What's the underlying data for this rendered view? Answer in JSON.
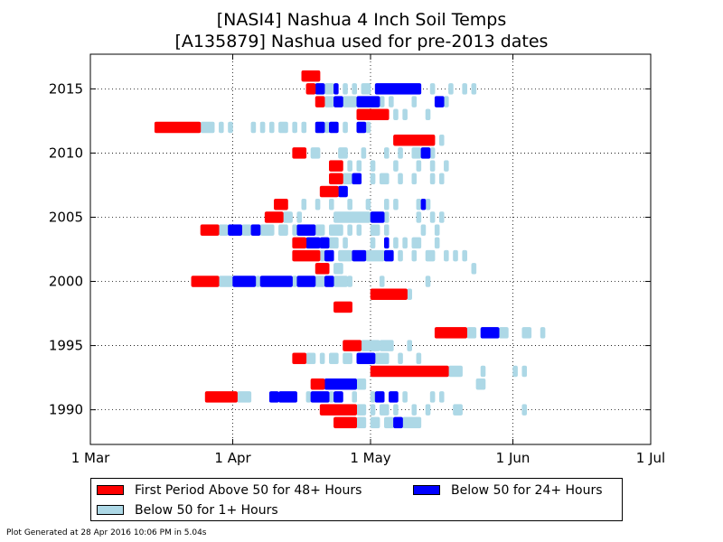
{
  "chart_data": {
    "type": "bar",
    "title_lines": [
      "[NASI4] Nashua 4 Inch Soil Temps",
      "[A135879] Nashua used for pre-2013 dates"
    ],
    "x_axis": {
      "kind": "date-of-year",
      "range": [
        "03-01",
        "07-01"
      ],
      "ticks": [
        {
          "date": "03-01",
          "label": "1 Mar"
        },
        {
          "date": "04-01",
          "label": "1 Apr"
        },
        {
          "date": "05-01",
          "label": "1 May"
        },
        {
          "date": "06-01",
          "label": "1 Jun"
        },
        {
          "date": "07-01",
          "label": "1 Jul"
        }
      ]
    },
    "y_axis": {
      "range": [
        1987.3,
        2017.7
      ],
      "ticks": [
        1990,
        1995,
        2000,
        2005,
        2010,
        2015
      ]
    },
    "grid": true,
    "legend_placement": "bottom",
    "colors": {
      "above50_48h": "#ff0000",
      "below50_24h": "#0000ff",
      "below50_1h": "#add8e6"
    },
    "series": [
      {
        "key": "below50_1h",
        "name": "Below 50 for 1+ Hours"
      },
      {
        "key": "below50_24h",
        "name": "Below 50 for 24+ Hours"
      },
      {
        "key": "above50_48h",
        "name": "First Period Above 50 for 48+ Hours"
      }
    ],
    "years": [
      {
        "year": 2016,
        "above50_48h": [
          [
            "04-16",
            "04-20"
          ]
        ],
        "below50_24h": [],
        "below50_1h": []
      },
      {
        "year": 2015,
        "above50_48h": [
          [
            "04-17",
            "04-19"
          ]
        ],
        "below50_24h": [
          [
            "04-19",
            "04-21"
          ],
          [
            "04-23",
            "04-24"
          ],
          [
            "05-02",
            "05-12"
          ]
        ],
        "below50_1h": [
          [
            "04-21",
            "04-23"
          ],
          [
            "04-25",
            "04-26"
          ],
          [
            "04-27",
            "04-28"
          ],
          [
            "04-29",
            "05-01"
          ],
          [
            "05-14",
            "05-15"
          ],
          [
            "05-18",
            "05-19"
          ],
          [
            "05-21",
            "05-22"
          ],
          [
            "05-23",
            "05-24"
          ]
        ]
      },
      {
        "year": 2014,
        "above50_48h": [
          [
            "04-19",
            "04-21"
          ]
        ],
        "below50_24h": [
          [
            "04-23",
            "04-25"
          ],
          [
            "04-28",
            "05-03"
          ],
          [
            "05-15",
            "05-17"
          ]
        ],
        "below50_1h": [
          [
            "04-21",
            "04-23"
          ],
          [
            "04-25",
            "04-28"
          ],
          [
            "05-03",
            "05-04"
          ],
          [
            "05-05",
            "05-06"
          ],
          [
            "05-10",
            "05-11"
          ],
          [
            "05-17",
            "05-18"
          ]
        ]
      },
      {
        "year": 2013,
        "above50_48h": [
          [
            "04-28",
            "05-05"
          ]
        ],
        "below50_24h": [],
        "below50_1h": [
          [
            "05-06",
            "05-07"
          ],
          [
            "05-08",
            "05-09"
          ],
          [
            "05-13",
            "05-14"
          ]
        ]
      },
      {
        "year": 2012,
        "above50_48h": [
          [
            "03-15",
            "03-25"
          ]
        ],
        "below50_24h": [
          [
            "04-19",
            "04-21"
          ],
          [
            "04-22",
            "04-24"
          ],
          [
            "04-28",
            "04-30"
          ]
        ],
        "below50_1h": [
          [
            "03-25",
            "03-28"
          ],
          [
            "03-29",
            "03-30"
          ],
          [
            "03-31",
            "04-01"
          ],
          [
            "04-05",
            "04-06"
          ],
          [
            "04-07",
            "04-08"
          ],
          [
            "04-09",
            "04-10"
          ],
          [
            "04-11",
            "04-13"
          ],
          [
            "04-14",
            "04-15"
          ],
          [
            "04-16",
            "04-17"
          ],
          [
            "04-21",
            "04-22"
          ],
          [
            "04-25",
            "04-26"
          ],
          [
            "04-30",
            "05-01"
          ]
        ]
      },
      {
        "year": 2011,
        "above50_48h": [
          [
            "05-06",
            "05-15"
          ]
        ],
        "below50_24h": [],
        "below50_1h": [
          [
            "05-16",
            "05-17"
          ]
        ]
      },
      {
        "year": 2010,
        "above50_48h": [
          [
            "04-14",
            "04-17"
          ]
        ],
        "below50_24h": [
          [
            "05-12",
            "05-14"
          ]
        ],
        "below50_1h": [
          [
            "04-18",
            "04-20"
          ],
          [
            "04-24",
            "04-26"
          ],
          [
            "04-29",
            "04-30"
          ],
          [
            "05-04",
            "05-05"
          ],
          [
            "05-07",
            "05-08"
          ],
          [
            "05-10",
            "05-12"
          ],
          [
            "05-14",
            "05-15"
          ]
        ]
      },
      {
        "year": 2009,
        "above50_48h": [
          [
            "04-22",
            "04-25"
          ]
        ],
        "below50_24h": [],
        "below50_1h": [
          [
            "04-26",
            "04-27"
          ],
          [
            "04-28",
            "04-29"
          ],
          [
            "05-01",
            "05-02"
          ],
          [
            "05-06",
            "05-07"
          ],
          [
            "05-11",
            "05-12"
          ],
          [
            "05-14",
            "05-15"
          ],
          [
            "05-17",
            "05-18"
          ]
        ]
      },
      {
        "year": 2008,
        "above50_48h": [
          [
            "04-22",
            "04-25"
          ]
        ],
        "below50_24h": [
          [
            "04-27",
            "04-29"
          ]
        ],
        "below50_1h": [
          [
            "04-25",
            "04-27"
          ],
          [
            "05-01",
            "05-02"
          ],
          [
            "05-03",
            "05-05"
          ],
          [
            "05-07",
            "05-08"
          ],
          [
            "05-10",
            "05-11"
          ],
          [
            "05-14",
            "05-15"
          ],
          [
            "05-16",
            "05-17"
          ]
        ]
      },
      {
        "year": 2007,
        "above50_48h": [
          [
            "04-20",
            "04-24"
          ]
        ],
        "below50_24h": [
          [
            "04-24",
            "04-26"
          ]
        ],
        "below50_1h": []
      },
      {
        "year": 2006,
        "above50_48h": [
          [
            "04-10",
            "04-13"
          ]
        ],
        "below50_24h": [
          [
            "05-12",
            "05-13"
          ]
        ],
        "below50_1h": [
          [
            "04-16",
            "04-17"
          ],
          [
            "04-19",
            "04-20"
          ],
          [
            "04-22",
            "04-23"
          ],
          [
            "04-26",
            "04-27"
          ],
          [
            "04-30",
            "05-01"
          ],
          [
            "05-04",
            "05-05"
          ],
          [
            "05-06",
            "05-07"
          ],
          [
            "05-11",
            "05-12"
          ],
          [
            "05-13",
            "05-14"
          ]
        ]
      },
      {
        "year": 2005,
        "above50_48h": [
          [
            "04-08",
            "04-12"
          ]
        ],
        "below50_24h": [
          [
            "05-01",
            "05-04"
          ]
        ],
        "below50_1h": [
          [
            "04-12",
            "04-14"
          ],
          [
            "04-15",
            "04-16"
          ],
          [
            "04-23",
            "05-01"
          ],
          [
            "05-04",
            "05-05"
          ],
          [
            "05-11",
            "05-12"
          ],
          [
            "05-14",
            "05-15"
          ],
          [
            "05-16",
            "05-17"
          ]
        ]
      },
      {
        "year": 2004,
        "above50_48h": [
          [
            "03-25",
            "03-29"
          ]
        ],
        "below50_24h": [
          [
            "03-31",
            "04-03"
          ],
          [
            "04-05",
            "04-07"
          ],
          [
            "04-15",
            "04-19"
          ]
        ],
        "below50_1h": [
          [
            "03-29",
            "03-31"
          ],
          [
            "04-03",
            "04-05"
          ],
          [
            "04-07",
            "04-10"
          ],
          [
            "04-11",
            "04-13"
          ],
          [
            "04-14",
            "04-15"
          ],
          [
            "04-19",
            "04-21"
          ],
          [
            "04-22",
            "04-25"
          ],
          [
            "04-26",
            "04-27"
          ],
          [
            "04-28",
            "04-29"
          ],
          [
            "05-01",
            "05-03"
          ],
          [
            "05-04",
            "05-05"
          ],
          [
            "05-12",
            "05-13"
          ],
          [
            "05-15",
            "05-16"
          ]
        ]
      },
      {
        "year": 2003,
        "above50_48h": [
          [
            "04-14",
            "04-17"
          ]
        ],
        "below50_24h": [
          [
            "04-17",
            "04-20"
          ],
          [
            "04-20",
            "04-22"
          ],
          [
            "05-04",
            "05-05"
          ]
        ],
        "below50_1h": [
          [
            "04-22",
            "04-24"
          ],
          [
            "04-25",
            "04-26"
          ],
          [
            "05-01",
            "05-02"
          ],
          [
            "05-06",
            "05-07"
          ],
          [
            "05-08",
            "05-09"
          ],
          [
            "05-10",
            "05-12"
          ],
          [
            "05-15",
            "05-16"
          ]
        ]
      },
      {
        "year": 2002,
        "above50_48h": [
          [
            "04-14",
            "04-20"
          ]
        ],
        "below50_24h": [
          [
            "04-21",
            "04-23"
          ],
          [
            "04-27",
            "04-30"
          ],
          [
            "05-04",
            "05-06"
          ]
        ],
        "below50_1h": [
          [
            "04-20",
            "04-21"
          ],
          [
            "04-24",
            "04-27"
          ],
          [
            "04-30",
            "05-04"
          ],
          [
            "05-07",
            "05-08"
          ],
          [
            "05-10",
            "05-11"
          ],
          [
            "05-13",
            "05-15"
          ],
          [
            "05-17",
            "05-18"
          ],
          [
            "05-19",
            "05-20"
          ],
          [
            "05-21",
            "05-22"
          ]
        ]
      },
      {
        "year": 2001,
        "above50_48h": [
          [
            "04-19",
            "04-22"
          ]
        ],
        "below50_24h": [],
        "below50_1h": [
          [
            "04-23",
            "04-25"
          ],
          [
            "05-23",
            "05-24"
          ]
        ]
      },
      {
        "year": 2000,
        "above50_48h": [
          [
            "03-23",
            "03-29"
          ]
        ],
        "below50_24h": [
          [
            "04-01",
            "04-06"
          ],
          [
            "04-07",
            "04-14"
          ],
          [
            "04-15",
            "04-19"
          ],
          [
            "04-21",
            "04-23"
          ]
        ],
        "below50_1h": [
          [
            "03-29",
            "04-01"
          ],
          [
            "04-06",
            "04-07"
          ],
          [
            "04-14",
            "04-15"
          ],
          [
            "04-19",
            "04-21"
          ],
          [
            "04-23",
            "04-26"
          ],
          [
            "04-26",
            "04-27"
          ],
          [
            "05-03",
            "05-04"
          ],
          [
            "05-13",
            "05-14"
          ]
        ]
      },
      {
        "year": 1999,
        "above50_48h": [
          [
            "05-01",
            "05-09"
          ]
        ],
        "below50_24h": [],
        "below50_1h": [
          [
            "05-09",
            "05-10"
          ]
        ]
      },
      {
        "year": 1998,
        "above50_48h": [
          [
            "04-23",
            "04-27"
          ]
        ],
        "below50_24h": [],
        "below50_1h": []
      },
      {
        "year": 1997,
        "above50_48h": [],
        "below50_24h": [],
        "below50_1h": []
      },
      {
        "year": 1996,
        "above50_48h": [
          [
            "05-15",
            "05-22"
          ]
        ],
        "below50_24h": [
          [
            "05-25",
            "05-29"
          ]
        ],
        "below50_1h": [
          [
            "05-22",
            "05-24"
          ],
          [
            "05-29",
            "05-31"
          ],
          [
            "06-03",
            "06-05"
          ],
          [
            "06-07",
            "06-08"
          ]
        ]
      },
      {
        "year": 1995,
        "above50_48h": [
          [
            "04-25",
            "04-29"
          ]
        ],
        "below50_24h": [],
        "below50_1h": [
          [
            "04-29",
            "05-01"
          ],
          [
            "05-01",
            "05-03"
          ],
          [
            "05-03",
            "05-06"
          ],
          [
            "05-09",
            "05-10"
          ]
        ]
      },
      {
        "year": 1994,
        "above50_48h": [
          [
            "04-14",
            "04-17"
          ]
        ],
        "below50_24h": [
          [
            "04-28",
            "05-02"
          ]
        ],
        "below50_1h": [
          [
            "04-17",
            "04-19"
          ],
          [
            "04-20",
            "04-21"
          ],
          [
            "04-22",
            "04-24"
          ],
          [
            "04-25",
            "04-27"
          ],
          [
            "05-02",
            "05-05"
          ],
          [
            "05-07",
            "05-08"
          ],
          [
            "05-11",
            "05-12"
          ]
        ]
      },
      {
        "year": 1993,
        "above50_48h": [
          [
            "05-01",
            "05-18"
          ]
        ],
        "below50_24h": [],
        "below50_1h": [
          [
            "05-18",
            "05-21"
          ],
          [
            "05-25",
            "05-26"
          ],
          [
            "06-01",
            "06-02"
          ],
          [
            "06-03",
            "06-04"
          ]
        ]
      },
      {
        "year": 1992,
        "above50_48h": [
          [
            "04-18",
            "04-21"
          ]
        ],
        "below50_24h": [
          [
            "04-21",
            "04-28"
          ]
        ],
        "below50_1h": [
          [
            "04-28",
            "04-30"
          ],
          [
            "05-24",
            "05-26"
          ]
        ]
      },
      {
        "year": 1991,
        "above50_48h": [
          [
            "03-26",
            "04-02"
          ]
        ],
        "below50_24h": [
          [
            "04-09",
            "04-11"
          ],
          [
            "04-11",
            "04-15"
          ],
          [
            "04-18",
            "04-22"
          ],
          [
            "04-23",
            "04-25"
          ],
          [
            "05-02",
            "05-04"
          ],
          [
            "05-05",
            "05-07"
          ]
        ],
        "below50_1h": [
          [
            "04-02",
            "04-05"
          ],
          [
            "04-17",
            "04-18"
          ],
          [
            "04-22",
            "04-23"
          ],
          [
            "04-27",
            "04-28"
          ],
          [
            "05-01",
            "05-02"
          ],
          [
            "05-08",
            "05-09"
          ],
          [
            "05-14",
            "05-15"
          ],
          [
            "05-16",
            "05-17"
          ]
        ]
      },
      {
        "year": 1990,
        "above50_48h": [
          [
            "04-20",
            "04-28"
          ]
        ],
        "below50_24h": [],
        "below50_1h": [
          [
            "04-28",
            "04-30"
          ],
          [
            "05-01",
            "05-02"
          ],
          [
            "05-03",
            "05-05"
          ],
          [
            "05-06",
            "05-07"
          ],
          [
            "05-10",
            "05-11"
          ],
          [
            "05-13",
            "05-14"
          ],
          [
            "05-19",
            "05-21"
          ],
          [
            "06-03",
            "06-04"
          ]
        ]
      },
      {
        "year": 1989,
        "above50_48h": [
          [
            "04-23",
            "04-28"
          ]
        ],
        "below50_24h": [
          [
            "05-06",
            "05-08"
          ]
        ],
        "below50_1h": [
          [
            "04-28",
            "04-30"
          ],
          [
            "05-01",
            "05-03"
          ],
          [
            "05-04",
            "05-06"
          ],
          [
            "05-08",
            "05-12"
          ]
        ]
      }
    ]
  },
  "footer": {
    "text": "Plot Generated at 28 Apr 2016 10:06 PM in 5.04s"
  }
}
